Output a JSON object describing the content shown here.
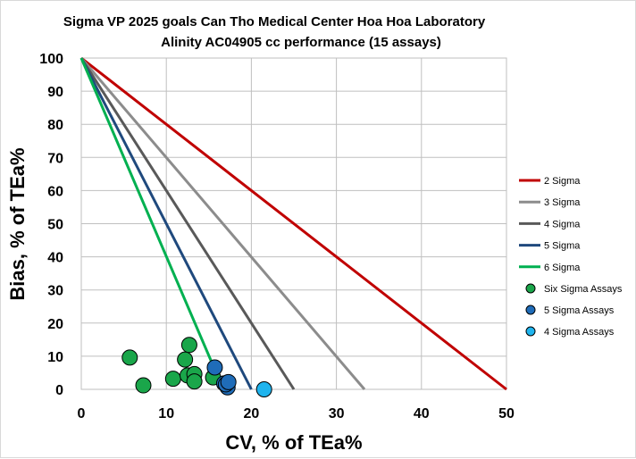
{
  "chart_data": {
    "type": "scatter",
    "title": "Sigma VP 2025 goals Can Tho Medical Center Hoa Hoa Laboratory",
    "subtitle": "Alinity AC04905 cc performance (15 assays)",
    "xlabel": "CV, % of TEa%",
    "ylabel": "Bias, % of TEa%",
    "xlim": [
      0,
      50
    ],
    "ylim": [
      0,
      100
    ],
    "xticks": [
      0,
      10,
      20,
      30,
      40,
      50
    ],
    "yticks": [
      0,
      10,
      20,
      30,
      40,
      50,
      60,
      70,
      80,
      90,
      100
    ],
    "grid": true,
    "legend_position": "right",
    "sigma_lines": [
      {
        "name": "2 Sigma",
        "color": "#c00000",
        "x": [
          0,
          50
        ],
        "y": [
          100,
          0
        ]
      },
      {
        "name": "3 Sigma",
        "color": "#8c8c8c",
        "x": [
          0,
          33.3
        ],
        "y": [
          100,
          0
        ]
      },
      {
        "name": "4 Sigma",
        "color": "#595959",
        "x": [
          0,
          25
        ],
        "y": [
          100,
          0
        ]
      },
      {
        "name": "5 Sigma",
        "color": "#1f497d",
        "x": [
          0,
          20
        ],
        "y": [
          100,
          0
        ]
      },
      {
        "name": "6 Sigma",
        "color": "#00b050",
        "x": [
          0,
          16.7
        ],
        "y": [
          100,
          0
        ]
      }
    ],
    "series": [
      {
        "name": "Six Sigma Assays",
        "color": "#1aa64a",
        "points": [
          {
            "x": 5.7,
            "y": 9.6
          },
          {
            "x": 7.3,
            "y": 1.2
          },
          {
            "x": 10.8,
            "y": 3.2
          },
          {
            "x": 12.2,
            "y": 9.0
          },
          {
            "x": 12.7,
            "y": 13.4
          },
          {
            "x": 12.5,
            "y": 4.2
          },
          {
            "x": 13.3,
            "y": 4.6
          },
          {
            "x": 13.3,
            "y": 2.4
          },
          {
            "x": 15.5,
            "y": 3.6
          }
        ]
      },
      {
        "name": "5 Sigma Assays",
        "color": "#1f6cb8",
        "points": [
          {
            "x": 15.7,
            "y": 6.6
          },
          {
            "x": 16.8,
            "y": 1.8
          },
          {
            "x": 17.2,
            "y": 0.6
          },
          {
            "x": 17.0,
            "y": 1.5
          },
          {
            "x": 17.3,
            "y": 2.2
          }
        ]
      },
      {
        "name": "4 Sigma Assays",
        "color": "#1fb4ee",
        "points": [
          {
            "x": 21.5,
            "y": 0.0
          }
        ]
      }
    ]
  }
}
